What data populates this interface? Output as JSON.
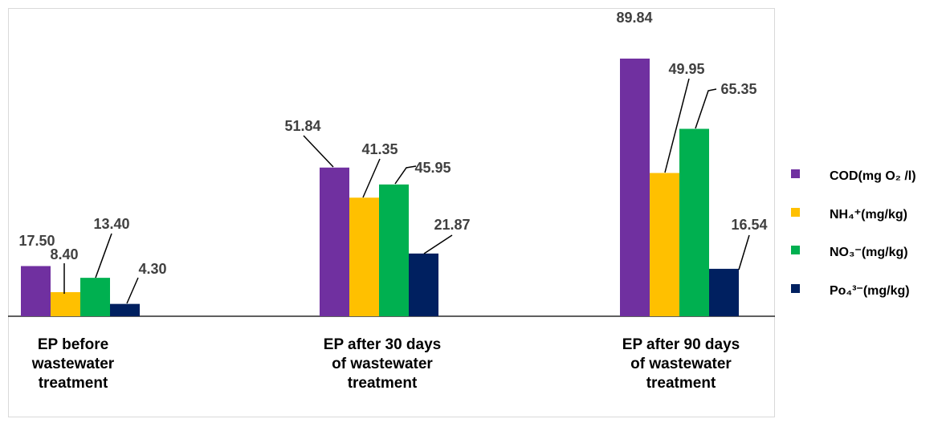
{
  "chart_data": {
    "type": "bar",
    "title": "",
    "xlabel": "",
    "ylabel": "",
    "ylim": [
      0,
      100
    ],
    "grid": false,
    "legend_position": "right",
    "categories": [
      [
        "EP before",
        "wastewater",
        "treatment"
      ],
      [
        "EP after 30 days",
        "of wastewater",
        "treatment"
      ],
      [
        "EP after 90 days",
        "of wastewater",
        "treatment"
      ]
    ],
    "series": [
      {
        "name": "COD(mg O₂ /l)",
        "color": "#7030a0",
        "values": [
          17.5,
          51.84,
          89.84
        ],
        "labels": [
          "17.50",
          "51.84",
          "89.84"
        ]
      },
      {
        "name": "NH₄⁺(mg/kg)",
        "color": "#ffc000",
        "values": [
          8.4,
          41.35,
          49.95
        ],
        "labels": [
          "8.40",
          "41.35",
          "49.95"
        ]
      },
      {
        "name": "NO₃⁻(mg/kg)",
        "color": "#00b050",
        "values": [
          13.4,
          45.95,
          65.35
        ],
        "labels": [
          "13.40",
          "45.95",
          "65.35"
        ]
      },
      {
        "name": "Po₄³⁻(mg/kg)",
        "color": "#002060",
        "values": [
          4.3,
          21.87,
          16.54
        ],
        "labels": [
          "4.30",
          "21.87",
          "16.54"
        ]
      }
    ]
  }
}
